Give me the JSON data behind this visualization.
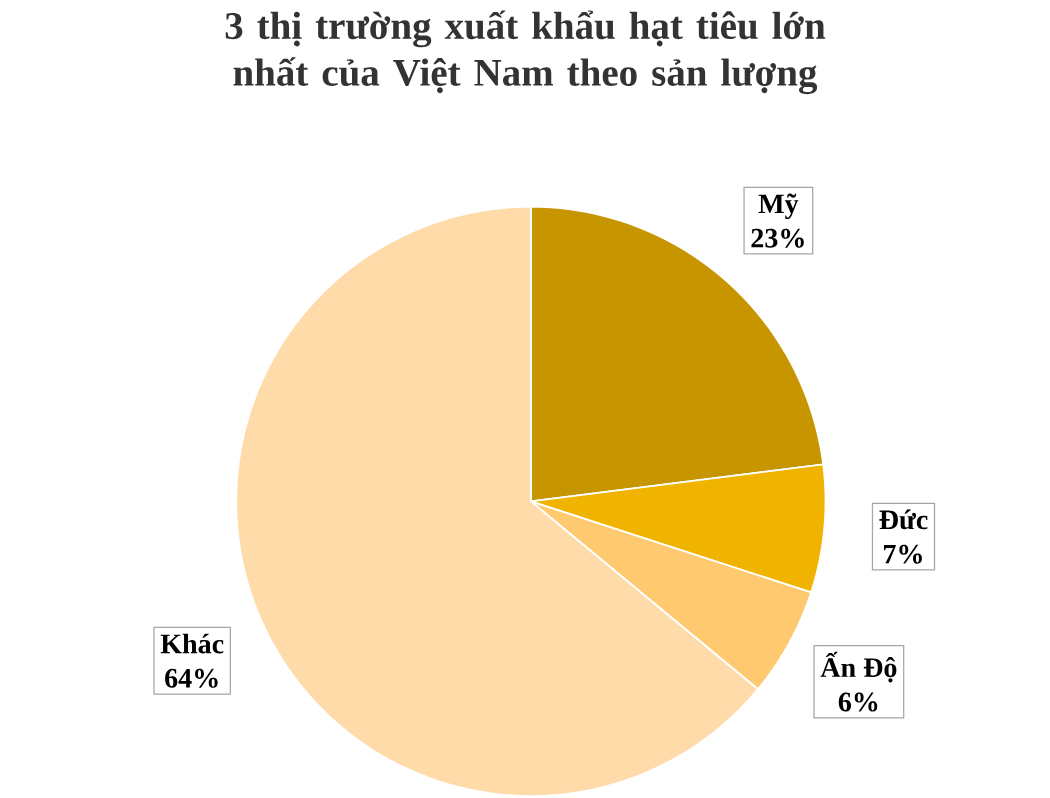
{
  "chart_data": {
    "type": "pie",
    "title": "3 thị trường xuất khẩu hạt tiêu lớn nhất của Việt Nam theo sản lượng",
    "categories": [
      "Mỹ",
      "Đức",
      "Ấn Độ",
      "Khác"
    ],
    "values": [
      23,
      7,
      6,
      64
    ],
    "colors": [
      "#c79500",
      "#f0b400",
      "#ffc96f",
      "#fedba9"
    ],
    "value_labels": [
      "23%",
      "7%",
      "6%",
      "64%"
    ]
  }
}
